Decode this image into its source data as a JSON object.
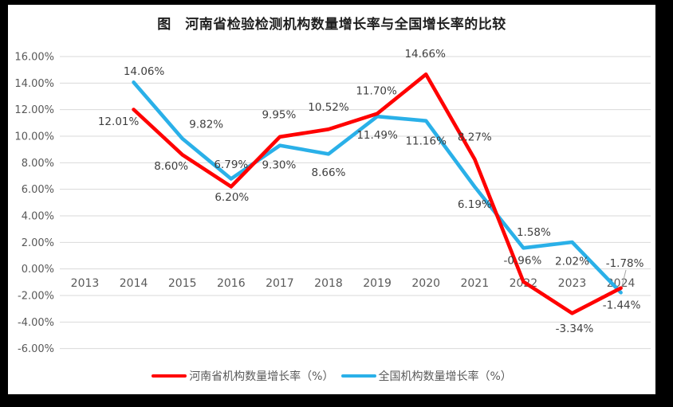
{
  "title": "图　河南省检验检测机构数量增长率与全国增长率的比较",
  "colors": {
    "henan_red": "#FF0000",
    "national_blue": "#2AB0E8",
    "gridline": "#D9D9D9",
    "tick_text": "#595959",
    "data_label_text": "#3F3F3F",
    "leader_line": "#A6A6A6",
    "panel_background": "#FFFFFF",
    "frame_background": "#000000"
  },
  "legend": [
    {
      "id": "henan",
      "label": "河南省机构数量增长率（%）",
      "color": "#FF0000"
    },
    {
      "id": "national",
      "label": "全国机构数量增长率（%）",
      "color": "#2AB0E8"
    }
  ],
  "chart_data": {
    "type": "line",
    "title": "图　河南省检验检测机构数量增长率与全国增长率的比较",
    "categories": [
      "2013",
      "2014",
      "2015",
      "2016",
      "2017",
      "2018",
      "2019",
      "2020",
      "2021",
      "2022",
      "2023",
      "2024"
    ],
    "series": [
      {
        "id": "henan",
        "name": "河南省机构数量增长率（%）",
        "color": "#FF0000",
        "values": [
          null,
          12.01,
          8.6,
          6.2,
          9.95,
          10.52,
          11.7,
          14.66,
          8.27,
          -0.96,
          -3.34,
          -1.44
        ],
        "data_labels": [
          null,
          "12.01%",
          "8.60%",
          "6.20%",
          "9.95%",
          "10.52%",
          "11.70%",
          "14.66%",
          "8.27%",
          "-0.96%",
          "-3.34%",
          "-1.44%"
        ]
      },
      {
        "id": "national",
        "name": "全国机构数量增长率（%）",
        "color": "#2AB0E8",
        "values": [
          null,
          14.06,
          9.82,
          6.79,
          9.3,
          8.66,
          11.49,
          11.16,
          6.19,
          1.58,
          2.02,
          -1.78
        ],
        "data_labels": [
          null,
          "14.06%",
          "9.82%",
          "6.79%",
          "9.30%",
          "8.66%",
          "11.49%",
          "11.16%",
          "6.19%",
          "1.58%",
          "2.02%",
          "-1.78%"
        ]
      }
    ],
    "ylim": [
      -6,
      16
    ],
    "ytick_step": 2,
    "ytick_labels": [
      "16.00%",
      "14.00%",
      "12.00%",
      "10.00%",
      "8.00%",
      "6.00%",
      "4.00%",
      "2.00%",
      "0.00%",
      "-2.00%",
      "-4.00%",
      "-6.00%"
    ],
    "grid": "horizontal",
    "legend_position": "bottom",
    "data_labels_shown": true,
    "xlabel": "",
    "ylabel": ""
  }
}
